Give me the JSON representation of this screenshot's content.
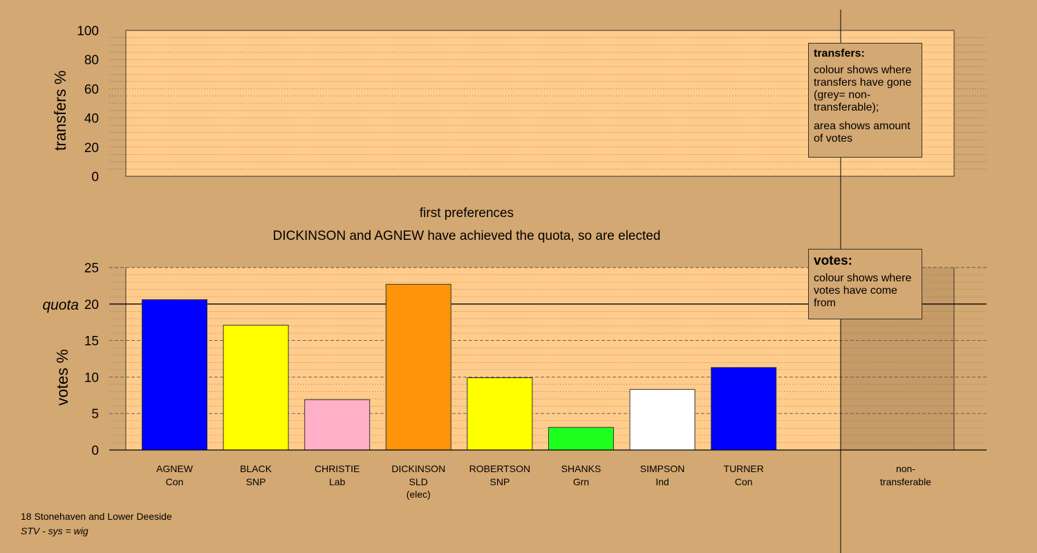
{
  "chart_data": {
    "type": "bar",
    "subtitle": "first preferences",
    "title": "DICKINSON and AGNEW have achieved the quota, so are elected",
    "transfers_panel": {
      "ylabel": "transfers %",
      "ylim": [
        0,
        100
      ],
      "ticks": [
        "0",
        "20",
        "40",
        "60",
        "80",
        "100"
      ],
      "minor_grid_step": 5
    },
    "votes_panel": {
      "ylabel": "votes %",
      "ylim": [
        0,
        25
      ],
      "ticks": [
        "0",
        "5",
        "10",
        "15",
        "20",
        "25"
      ],
      "minor_grid_step": 1,
      "quota": 20,
      "quota_label": "quota"
    },
    "categories": [
      {
        "name": "AGNEW",
        "party": "Con",
        "note": "",
        "value": 20.6,
        "color": "#0000ff"
      },
      {
        "name": "BLACK",
        "party": "SNP",
        "note": "",
        "value": 17.1,
        "color": "#ffff00"
      },
      {
        "name": "CHRISTIE",
        "party": "Lab",
        "note": "",
        "value": 6.9,
        "color": "#ffb0c8"
      },
      {
        "name": "DICKINSON",
        "party": "SLD",
        "note": "(elec)",
        "value": 22.7,
        "color": "#ff9408"
      },
      {
        "name": "ROBERTSON",
        "party": "SNP",
        "note": "",
        "value": 9.9,
        "color": "#ffff00"
      },
      {
        "name": "SHANKS",
        "party": "Grn",
        "note": "",
        "value": 3.1,
        "color": "#1eff1e"
      },
      {
        "name": "SIMPSON",
        "party": "Ind",
        "note": "",
        "value": 8.3,
        "color": "#ffffff"
      },
      {
        "name": "TURNER",
        "party": "Con",
        "note": "",
        "value": 11.3,
        "color": "#0000ff"
      }
    ],
    "non_transferable": {
      "label_line1": "non-",
      "label_line2": "transferable",
      "value": 0
    },
    "colors": {
      "background": "#d4a872",
      "panel": "#ffcc8c"
    }
  },
  "legends": {
    "transfers": {
      "title": "transfers:",
      "text1": "colour shows where transfers have gone (grey= non-transferable);",
      "text2": "area shows amount of votes"
    },
    "votes": {
      "title": "votes:",
      "text1": "colour shows where votes have come from"
    }
  },
  "footer": {
    "title": "18 Stonehaven and Lower Deeside",
    "system": "STV - sys = wig"
  }
}
